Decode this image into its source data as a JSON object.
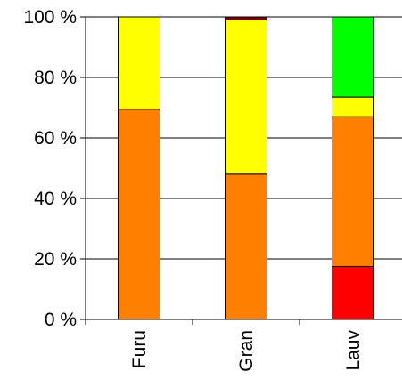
{
  "chart_data": {
    "type": "bar",
    "stacked": true,
    "categories": [
      "Furu",
      "Gran",
      "Lauv"
    ],
    "series": [
      {
        "color": "#ff0000",
        "values": [
          0,
          0,
          17.5
        ]
      },
      {
        "color": "#ff8000",
        "values": [
          69.5,
          48,
          49.5
        ]
      },
      {
        "color": "#ffff00",
        "values": [
          30.5,
          51,
          6.5
        ]
      },
      {
        "color": "#00ff00",
        "values": [
          0,
          0,
          26.5
        ]
      },
      {
        "color": "#800000",
        "values": [
          0,
          1,
          0
        ]
      }
    ],
    "yticks": [
      "0 %",
      "20 %",
      "40 %",
      "60 %",
      "80 %",
      "100 %"
    ],
    "ylim": [
      0,
      100
    ],
    "grid": "horizontal"
  }
}
